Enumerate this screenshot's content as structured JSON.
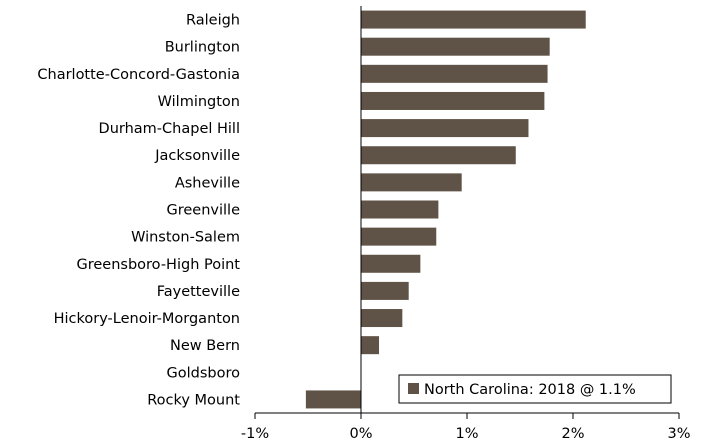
{
  "chart_data": {
    "type": "bar",
    "orientation": "horizontal",
    "title": "",
    "xlabel": "",
    "ylabel": "",
    "categories": [
      "Raleigh",
      "Burlington",
      "Charlotte-Concord-Gastonia",
      "Wilmington",
      "Durham-Chapel Hill",
      "Jacksonville",
      "Asheville",
      "Greenville",
      "Winston-Salem",
      "Greensboro-High Point",
      "Fayetteville",
      "Hickory-Lenoir-Morganton",
      "New Bern",
      "Goldsboro",
      "Rocky Mount"
    ],
    "values": [
      2.12,
      1.78,
      1.76,
      1.73,
      1.58,
      1.46,
      0.95,
      0.73,
      0.71,
      0.56,
      0.45,
      0.39,
      0.17,
      0.0,
      -0.52
    ],
    "value_unit": "%",
    "xlim": [
      -1,
      3
    ],
    "xticks": [
      -1,
      0,
      1,
      2,
      3
    ],
    "xtick_labels": [
      "-1%",
      "0%",
      "1%",
      "2%",
      "3%"
    ],
    "grid": false,
    "bar_color": "#5f5246",
    "legend": {
      "placement": "bottom-right",
      "entries": [
        {
          "label": "North Carolina: 2018 @ 1.1%",
          "color": "#5f5246"
        }
      ]
    }
  }
}
